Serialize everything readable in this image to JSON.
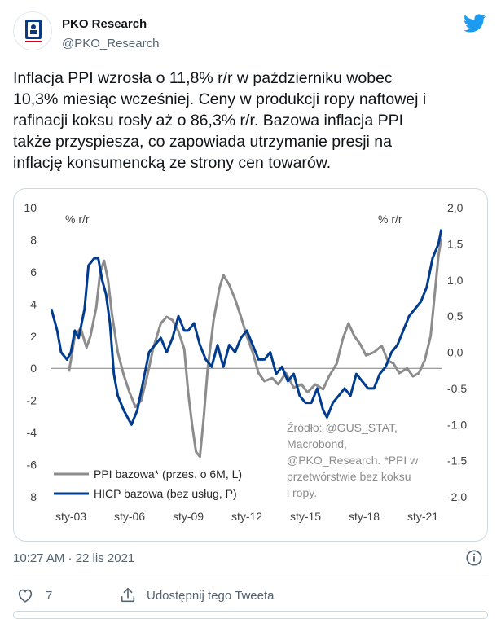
{
  "author": {
    "name": "PKO Research",
    "handle": "@PKO_Research",
    "avatar_caption": "Bank Polski"
  },
  "tweet": {
    "text": "Inflacja PPI wzrosła o 11,8% r/r w październiku wobec\n10,3% miesiąc wcześniej. Ceny w produkcji ropy naftowej i\nrafinacji koksu rosły aż o 86,3% r/r. Bazowa inflacja PPI\ntakże przyspiesza, co zapowiada utrzymanie presji na\ninflację konsumencką ze strony cen towarów.",
    "timestamp": "10:27 AM · 22 lis 2021",
    "likes": "7",
    "share_label": "Udostępnij tego Tweeta"
  },
  "colors": {
    "twitter_blue": "#1d9bf0",
    "pko_red": "#d7001b",
    "ppi_series": "#8c8c8c",
    "hicp_series": "#003b8e"
  },
  "icons": {
    "bird": "twitter-bird-icon",
    "info": "info-icon",
    "like": "heart-icon",
    "share": "share-icon"
  },
  "chart_data": {
    "type": "line",
    "left_axis_unit": "% r/r",
    "right_axis_unit": "% r/r",
    "left_ylim": [
      -8,
      10
    ],
    "right_ylim": [
      -2.0,
      2.0
    ],
    "left_ticks": [
      "10",
      "8",
      "6",
      "4",
      "2",
      "0",
      "-2",
      "-4",
      "-6",
      "-8"
    ],
    "right_ticks": [
      "2,0",
      "1,5",
      "1,0",
      "0,5",
      "0,0",
      "-0,5",
      "-1,0",
      "-1,5",
      "-2,0"
    ],
    "x_ticks": [
      "sty-03",
      "sty-06",
      "sty-09",
      "sty-12",
      "sty-15",
      "sty-18",
      "sty-21"
    ],
    "x_range": [
      2002.0,
      2022.0
    ],
    "legend": [
      "PPI bazowa* (przes. o 6M, L)",
      "HICP bazowa (bez usług, P)"
    ],
    "source_note": [
      "Źródło: @GUS_STAT,",
      "Macrobond,",
      "@PKO_Research. *PPI w",
      "przetwórstwie bez koksu",
      "i ropy."
    ],
    "series": [
      {
        "name": "PPI bazowa* (przes. o 6M, L)",
        "axis": "left",
        "color": "#8c8c8c",
        "points": [
          [
            2002.9,
            -0.2
          ],
          [
            2003.0,
            0.5
          ],
          [
            2003.2,
            2.0
          ],
          [
            2003.5,
            2.5
          ],
          [
            2003.8,
            1.3
          ],
          [
            2004.0,
            2.0
          ],
          [
            2004.3,
            3.8
          ],
          [
            2004.5,
            6.0
          ],
          [
            2004.7,
            6.7
          ],
          [
            2004.9,
            5.5
          ],
          [
            2005.1,
            3.4
          ],
          [
            2005.4,
            1.0
          ],
          [
            2005.7,
            -0.4
          ],
          [
            2006.0,
            -1.5
          ],
          [
            2006.3,
            -2.4
          ],
          [
            2006.6,
            -2.0
          ],
          [
            2006.9,
            -0.5
          ],
          [
            2007.2,
            1.2
          ],
          [
            2007.6,
            2.8
          ],
          [
            2007.9,
            3.2
          ],
          [
            2008.2,
            3.0
          ],
          [
            2008.5,
            2.3
          ],
          [
            2008.8,
            1.2
          ],
          [
            2009.0,
            -1.5
          ],
          [
            2009.2,
            -3.5
          ],
          [
            2009.4,
            -5.2
          ],
          [
            2009.6,
            -5.5
          ],
          [
            2009.8,
            -3.0
          ],
          [
            2010.0,
            0.0
          ],
          [
            2010.3,
            3.0
          ],
          [
            2010.6,
            5.0
          ],
          [
            2010.8,
            5.8
          ],
          [
            2011.1,
            5.2
          ],
          [
            2011.4,
            4.3
          ],
          [
            2011.7,
            3.2
          ],
          [
            2012.0,
            2.0
          ],
          [
            2012.3,
            1.0
          ],
          [
            2012.6,
            -0.3
          ],
          [
            2012.9,
            -0.8
          ],
          [
            2013.3,
            -0.6
          ],
          [
            2013.6,
            -1.0
          ],
          [
            2014.0,
            -0.3
          ],
          [
            2014.4,
            -1.2
          ],
          [
            2014.8,
            -1.0
          ],
          [
            2015.1,
            -1.5
          ],
          [
            2015.5,
            -1.0
          ],
          [
            2015.9,
            -1.3
          ],
          [
            2016.2,
            -0.5
          ],
          [
            2016.6,
            0.3
          ],
          [
            2016.9,
            1.8
          ],
          [
            2017.2,
            2.8
          ],
          [
            2017.5,
            2.0
          ],
          [
            2017.8,
            1.5
          ],
          [
            2018.1,
            0.8
          ],
          [
            2018.5,
            1.0
          ],
          [
            2018.9,
            1.4
          ],
          [
            2019.2,
            0.5
          ],
          [
            2019.5,
            0.3
          ],
          [
            2019.8,
            -0.3
          ],
          [
            2020.2,
            0.0
          ],
          [
            2020.5,
            -0.5
          ],
          [
            2020.8,
            -0.3
          ],
          [
            2021.1,
            0.5
          ],
          [
            2021.4,
            2.0
          ],
          [
            2021.6,
            4.5
          ],
          [
            2021.8,
            7.0
          ],
          [
            2021.95,
            8.1
          ]
        ]
      },
      {
        "name": "HICP bazowa (bez usług, P)",
        "axis": "right",
        "color": "#003b8e",
        "points": [
          [
            2002.0,
            0.6
          ],
          [
            2002.3,
            0.3
          ],
          [
            2002.5,
            0.0
          ],
          [
            2002.8,
            -0.1
          ],
          [
            2003.0,
            0.0
          ],
          [
            2003.2,
            0.3
          ],
          [
            2003.4,
            0.2
          ],
          [
            2003.7,
            0.6
          ],
          [
            2003.9,
            1.2
          ],
          [
            2004.2,
            1.3
          ],
          [
            2004.4,
            1.3
          ],
          [
            2004.6,
            1.0
          ],
          [
            2004.8,
            0.8
          ],
          [
            2005.0,
            0.4
          ],
          [
            2005.2,
            -0.3
          ],
          [
            2005.4,
            -0.6
          ],
          [
            2005.7,
            -0.8
          ],
          [
            2005.9,
            -0.9
          ],
          [
            2006.1,
            -1.0
          ],
          [
            2006.4,
            -0.8
          ],
          [
            2006.7,
            -0.4
          ],
          [
            2007.0,
            0.0
          ],
          [
            2007.3,
            0.1
          ],
          [
            2007.6,
            0.2
          ],
          [
            2007.9,
            0.0
          ],
          [
            2008.2,
            0.2
          ],
          [
            2008.5,
            0.5
          ],
          [
            2008.8,
            0.3
          ],
          [
            2009.0,
            0.3
          ],
          [
            2009.3,
            0.4
          ],
          [
            2009.6,
            0.1
          ],
          [
            2009.9,
            -0.1
          ],
          [
            2010.2,
            -0.2
          ],
          [
            2010.5,
            0.1
          ],
          [
            2010.8,
            -0.2
          ],
          [
            2011.1,
            0.1
          ],
          [
            2011.4,
            0.0
          ],
          [
            2011.7,
            0.2
          ],
          [
            2012.0,
            0.3
          ],
          [
            2012.3,
            0.1
          ],
          [
            2012.6,
            -0.1
          ],
          [
            2012.9,
            -0.1
          ],
          [
            2013.2,
            0.0
          ],
          [
            2013.5,
            -0.3
          ],
          [
            2013.8,
            -0.2
          ],
          [
            2014.1,
            -0.4
          ],
          [
            2014.4,
            -0.3
          ],
          [
            2014.7,
            -0.6
          ],
          [
            2015.0,
            -0.7
          ],
          [
            2015.3,
            -0.7
          ],
          [
            2015.6,
            -0.5
          ],
          [
            2015.9,
            -0.8
          ],
          [
            2016.1,
            -0.9
          ],
          [
            2016.4,
            -0.7
          ],
          [
            2016.7,
            -0.6
          ],
          [
            2017.0,
            -0.5
          ],
          [
            2017.3,
            -0.6
          ],
          [
            2017.6,
            -0.3
          ],
          [
            2017.9,
            -0.4
          ],
          [
            2018.2,
            -0.5
          ],
          [
            2018.5,
            -0.5
          ],
          [
            2018.8,
            -0.3
          ],
          [
            2019.1,
            -0.2
          ],
          [
            2019.4,
            0.0
          ],
          [
            2019.7,
            0.1
          ],
          [
            2020.0,
            0.3
          ],
          [
            2020.3,
            0.5
          ],
          [
            2020.6,
            0.6
          ],
          [
            2020.9,
            0.7
          ],
          [
            2021.2,
            0.9
          ],
          [
            2021.5,
            1.3
          ],
          [
            2021.8,
            1.5
          ],
          [
            2021.95,
            1.7
          ]
        ]
      }
    ]
  }
}
